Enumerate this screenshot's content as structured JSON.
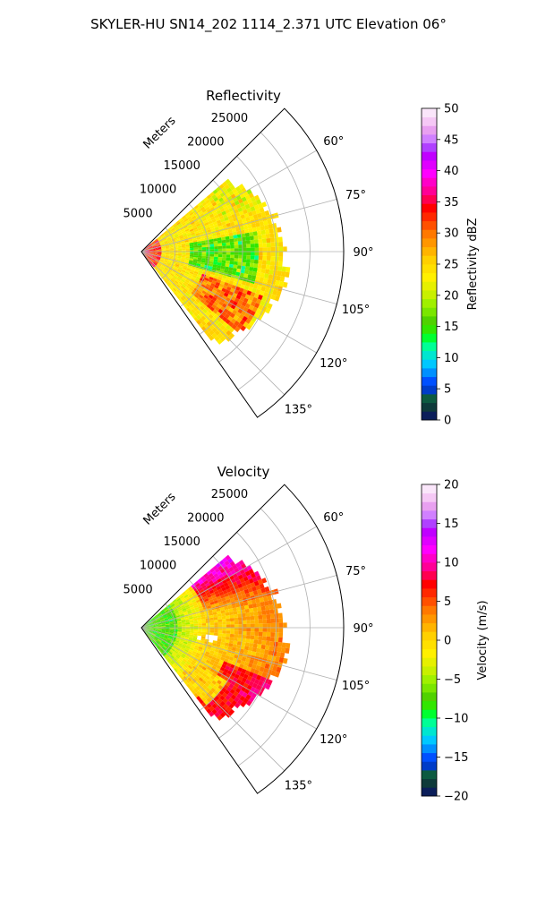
{
  "figure": {
    "suptitle": "SKYLER-HU  SN14_202  1114_2.371 UTC Elevation 06°"
  },
  "chart_data": [
    {
      "type": "heatmap",
      "projection": "polar-sector",
      "title": "Reflectivity",
      "radial_label": "Meters",
      "radial_ticks": [
        5000,
        10000,
        15000,
        20000,
        25000
      ],
      "radial_tick_labels": [
        "5000",
        "10000",
        "15000",
        "20000",
        "25000"
      ],
      "rlim": [
        0,
        30000
      ],
      "azimuth_range_deg": [
        45,
        145
      ],
      "azimuth_ticks": [
        60,
        75,
        90,
        105,
        120,
        135
      ],
      "azimuth_tick_labels": [
        "60°",
        "75°",
        "90°",
        "105°",
        "120°",
        "135°"
      ],
      "data_azimuth_range_deg": [
        50,
        142
      ],
      "data_range_max_m": 22000,
      "grid": true,
      "colorbar": {
        "label": "Reflectivity dBZ",
        "range": [
          0,
          50
        ],
        "ticks": [
          0,
          5,
          10,
          15,
          20,
          25,
          30,
          35,
          40,
          45,
          50
        ],
        "tick_labels": [
          "0",
          "5",
          "10",
          "15",
          "20",
          "25",
          "30",
          "35",
          "40",
          "45",
          "50"
        ],
        "colors": [
          "#0b1e5a",
          "#0e3a3a",
          "#0d5a40",
          "#003cc8",
          "#0050ff",
          "#0090ff",
          "#00c8ff",
          "#00e6d0",
          "#00ff96",
          "#00ff30",
          "#32e600",
          "#50d200",
          "#7ae600",
          "#a0f000",
          "#c8f000",
          "#e6f000",
          "#fff000",
          "#ffe000",
          "#ffd000",
          "#ffb400",
          "#ff9600",
          "#ff7800",
          "#ff5000",
          "#ff2800",
          "#ff0000",
          "#ff0050",
          "#ff0096",
          "#ff00c8",
          "#ff00ff",
          "#e000ff",
          "#c000ff",
          "#b040ff",
          "#d080ff",
          "#e8a0f0",
          "#f5c8f5",
          "#fae6fa"
        ]
      }
    },
    {
      "type": "heatmap",
      "projection": "polar-sector",
      "title": "Velocity",
      "radial_label": "Meters",
      "radial_ticks": [
        5000,
        10000,
        15000,
        20000,
        25000
      ],
      "radial_tick_labels": [
        "5000",
        "10000",
        "15000",
        "20000",
        "25000"
      ],
      "rlim": [
        0,
        30000
      ],
      "azimuth_range_deg": [
        45,
        145
      ],
      "azimuth_ticks": [
        60,
        75,
        90,
        105,
        120,
        135
      ],
      "azimuth_tick_labels": [
        "60°",
        "75°",
        "90°",
        "105°",
        "120°",
        "135°"
      ],
      "data_azimuth_range_deg": [
        50,
        142
      ],
      "data_range_max_m": 22000,
      "grid": true,
      "colorbar": {
        "label": "Velocity (m/s)",
        "range": [
          -20,
          20
        ],
        "ticks": [
          -20,
          -15,
          -10,
          -5,
          0,
          5,
          10,
          15,
          20
        ],
        "tick_labels": [
          "−20",
          "−15",
          "−10",
          "−5",
          "0",
          "5",
          "10",
          "15",
          "20"
        ],
        "colors": [
          "#0b1e5a",
          "#0e3a3a",
          "#0d5a40",
          "#003cc8",
          "#0050ff",
          "#0090ff",
          "#00c8ff",
          "#00e6d0",
          "#00ff96",
          "#00ff30",
          "#32e600",
          "#50d200",
          "#7ae600",
          "#a0f000",
          "#c8f000",
          "#e6f000",
          "#fff000",
          "#ffe000",
          "#ffd000",
          "#ffb400",
          "#ff9600",
          "#ff7800",
          "#ff5000",
          "#ff2800",
          "#ff0000",
          "#ff0050",
          "#ff0096",
          "#ff00c8",
          "#ff00ff",
          "#e000ff",
          "#c000ff",
          "#b040ff",
          "#d080ff",
          "#e8a0f0",
          "#f5c8f5",
          "#fae6fa"
        ]
      }
    }
  ]
}
